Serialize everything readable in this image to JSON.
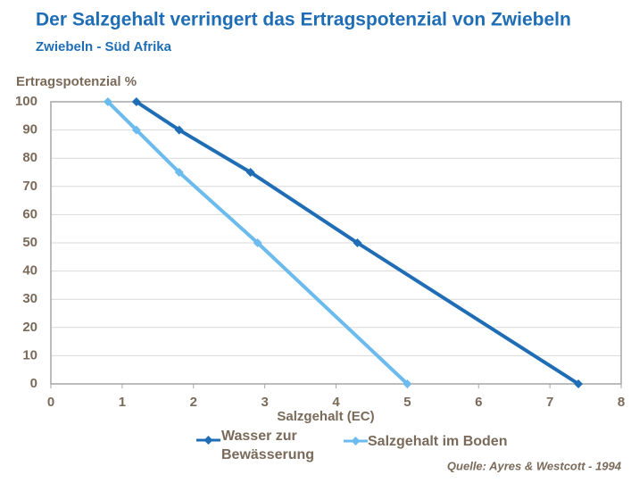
{
  "chart_data": {
    "type": "line",
    "title": "Der Salzgehalt verringert das Ertragspotenzial von Zwiebeln",
    "subtitle": "Zwiebeln - Süd Afrika",
    "y_label": "Ertragspotenzial %",
    "x_label": "Salzgehalt (EC)",
    "source": "Quelle: Ayres & Westcott - 1994",
    "series": [
      {
        "name": "Wasser zur Bewässerung",
        "color": "#1f6db5",
        "x": [
          1.2,
          1.8,
          2.8,
          4.3,
          7.4
        ],
        "values": [
          100,
          90,
          75,
          50,
          0
        ]
      },
      {
        "name": "Salzgehalt im Boden",
        "color": "#6cbbee",
        "x": [
          0.8,
          1.2,
          1.8,
          2.9,
          5.0
        ],
        "values": [
          100,
          90,
          75,
          50,
          0
        ]
      }
    ],
    "xlim": [
      0,
      8
    ],
    "xticks": [
      0,
      1,
      2,
      3,
      4,
      5,
      6,
      7,
      8
    ],
    "ylim": [
      0,
      100
    ],
    "yticks": [
      0,
      10,
      20,
      30,
      40,
      50,
      60,
      70,
      80,
      90,
      100
    ],
    "grid": true
  }
}
